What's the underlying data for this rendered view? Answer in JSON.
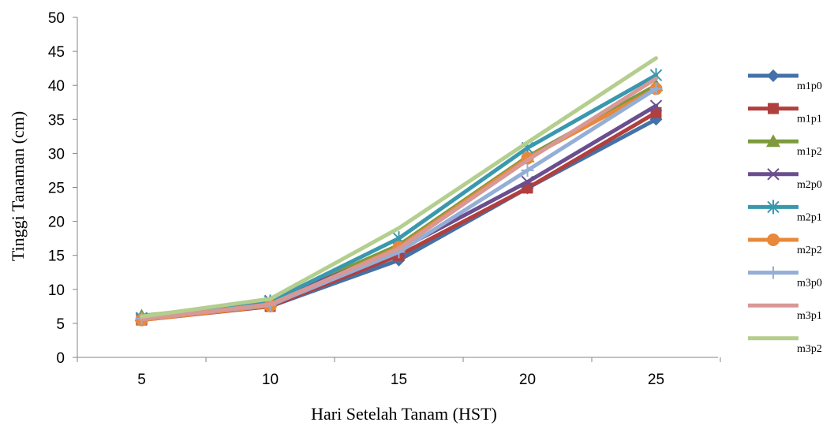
{
  "chart_data": {
    "type": "line",
    "title": "",
    "xlabel": "Hari Setelah Tanam (HST)",
    "ylabel": "Tinggi Tanaman (cm)",
    "x": [
      5,
      10,
      15,
      20,
      25
    ],
    "ylim": [
      0,
      50
    ],
    "yticks": [
      0,
      5,
      10,
      15,
      20,
      25,
      30,
      35,
      40,
      45,
      50
    ],
    "grid": false,
    "legend_position": "right",
    "series": [
      {
        "name": "m1p0",
        "color": "#4472A8",
        "marker": "diamond",
        "values": [
          5.6,
          7.5,
          14.3,
          24.9,
          35.0
        ]
      },
      {
        "name": "m1p1",
        "color": "#B0403D",
        "marker": "square",
        "values": [
          5.5,
          7.5,
          15.0,
          24.9,
          36.0
        ]
      },
      {
        "name": "m1p2",
        "color": "#7E9A3E",
        "marker": "triangle",
        "values": [
          6.1,
          8.2,
          16.5,
          29.5,
          40.0
        ]
      },
      {
        "name": "m2p0",
        "color": "#6B4E8E",
        "marker": "x",
        "values": [
          5.7,
          8.3,
          15.8,
          25.8,
          37.0
        ]
      },
      {
        "name": "m2p1",
        "color": "#3A98AE",
        "marker": "asterisk",
        "values": [
          5.8,
          8.2,
          17.5,
          30.8,
          41.5
        ]
      },
      {
        "name": "m2p2",
        "color": "#E8883A",
        "marker": "circle",
        "values": [
          5.5,
          7.6,
          16.2,
          29.3,
          39.5
        ]
      },
      {
        "name": "m3p0",
        "color": "#94AED6",
        "marker": "plus",
        "values": [
          5.7,
          7.7,
          15.5,
          27.5,
          39.5
        ]
      },
      {
        "name": "m3p1",
        "color": "#D89896",
        "marker": "none",
        "values": [
          5.6,
          7.8,
          16.0,
          29.0,
          41.0
        ]
      },
      {
        "name": "m3p2",
        "color": "#B4CE8E",
        "marker": "none",
        "values": [
          6.0,
          8.6,
          19.0,
          31.6,
          44.0
        ]
      }
    ]
  }
}
